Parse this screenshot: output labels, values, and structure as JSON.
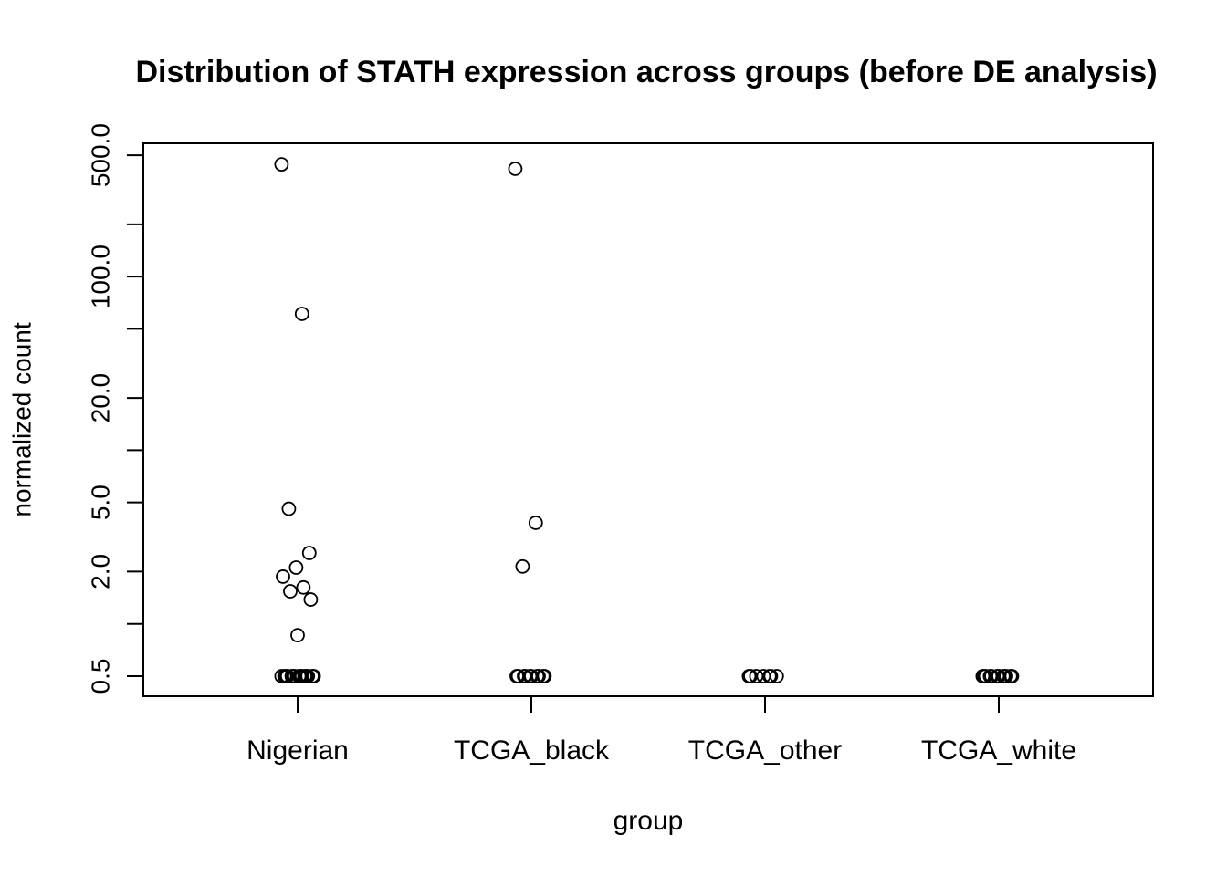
{
  "chart_data": {
    "type": "strip",
    "title": "Distribution of STATH expression across groups (before DE analysis)",
    "x_label": "group",
    "y_label": "normalized count",
    "categories": [
      "Nigerian",
      "TCGA_black",
      "TCGA_other",
      "TCGA_white"
    ],
    "values": [
      [
        443,
        61,
        4.6,
        2.56,
        2.11,
        1.87,
        1.62,
        1.54,
        1.38,
        0.86,
        0.5,
        0.5,
        0.5,
        0.5,
        0.5,
        0.5,
        0.5,
        0.5,
        0.5,
        0.5,
        0.5,
        0.5,
        0.5,
        0.5,
        0.5
      ],
      [
        418,
        3.82,
        2.14,
        0.5,
        0.5,
        0.5,
        0.5,
        0.5,
        0.5,
        0.5,
        0.5,
        0.5,
        0.5
      ],
      [
        0.5,
        0.5,
        0.5,
        0.5,
        0.5,
        0.5,
        0.5
      ],
      [
        0.5,
        0.5,
        0.5,
        0.5,
        0.5,
        0.5,
        0.5,
        0.5,
        0.5,
        0.5,
        0.5,
        0.5
      ]
    ],
    "log_y": true,
    "ylim": [
      0.383,
      586
    ],
    "yticks": [
      {
        "value": 0.5,
        "label": "0.5"
      },
      {
        "value": 2,
        "label": "2.0"
      },
      {
        "value": 5,
        "label": "5.0"
      },
      {
        "value": 20,
        "label": "20.0"
      },
      {
        "value": 100,
        "label": "100.0"
      },
      {
        "value": 500,
        "label": "500.0"
      }
    ],
    "yminor_ticks": [
      1,
      10,
      50,
      200
    ],
    "color": "#000000"
  }
}
